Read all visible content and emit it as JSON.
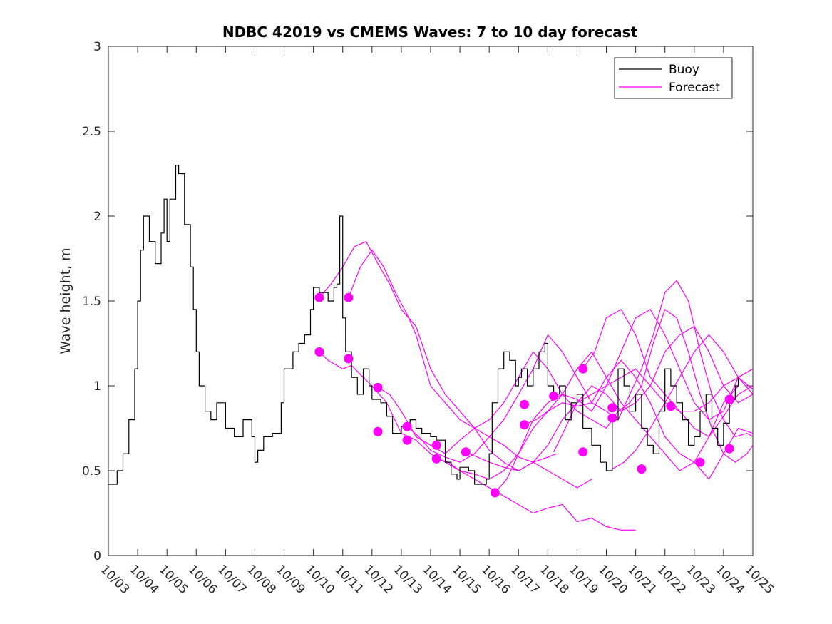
{
  "chart_data": {
    "type": "line",
    "title": "NDBC 42019 vs CMEMS Waves: 7 to 10 day forecast",
    "xlabel": "",
    "ylabel": "Wave height, m",
    "xlim": [
      0,
      22
    ],
    "ylim": [
      0,
      3
    ],
    "x_tick_labels": [
      "10/03",
      "10/04",
      "10/05",
      "10/06",
      "10/07",
      "10/08",
      "10/09",
      "10/10",
      "10/11",
      "10/12",
      "10/13",
      "10/14",
      "10/15",
      "10/16",
      "10/17",
      "10/18",
      "10/19",
      "10/20",
      "10/21",
      "10/22",
      "10/23",
      "10/24",
      "10/25"
    ],
    "y_ticks": [
      0,
      0.5,
      1,
      1.5,
      2,
      2.5,
      3
    ],
    "y_tick_labels": [
      "0",
      "0.5",
      "1",
      "1.5",
      "2",
      "2.5",
      "3"
    ],
    "x_units": "days since 10/03",
    "legend": {
      "position": "top-right",
      "entries": [
        {
          "label": "Buoy",
          "color": "#000000"
        },
        {
          "label": "Forecast",
          "color": "#ff00ff"
        }
      ]
    },
    "colors": {
      "buoy": "#000000",
      "forecast": "#ff00ff"
    },
    "buoy": {
      "name": "Buoy",
      "x": [
        0,
        0.3,
        0.5,
        0.7,
        0.9,
        1.0,
        1.1,
        1.2,
        1.4,
        1.6,
        1.8,
        1.9,
        2.0,
        2.1,
        2.3,
        2.4,
        2.6,
        2.8,
        2.9,
        3.0,
        3.1,
        3.3,
        3.5,
        3.7,
        4.0,
        4.3,
        4.6,
        4.9,
        5.0,
        5.1,
        5.3,
        5.6,
        5.9,
        6.0,
        6.3,
        6.5,
        6.7,
        6.9,
        7.0,
        7.2,
        7.5,
        7.7,
        7.8,
        7.9,
        8.0,
        8.1,
        8.3,
        8.5,
        8.7,
        8.9,
        9.0,
        9.3,
        9.5,
        9.7,
        10.0,
        10.3,
        10.5,
        10.7,
        11.0,
        11.2,
        11.5,
        11.7,
        11.9,
        12.0,
        12.3,
        12.5,
        12.7,
        12.9,
        13.0,
        13.1,
        13.3,
        13.5,
        13.7,
        13.9,
        14.0,
        14.1,
        14.3,
        14.5,
        14.7,
        14.9,
        15.0,
        15.2,
        15.4,
        15.6,
        15.8,
        16.0,
        16.2,
        16.5,
        16.8,
        17.0,
        17.2,
        17.4,
        17.6,
        17.8,
        18.0,
        18.2,
        18.4,
        18.6,
        18.8,
        19.0,
        19.2,
        19.4,
        19.6,
        19.8,
        20.0,
        20.2,
        20.4,
        20.6,
        20.8,
        21.0,
        21.2,
        21.4,
        21.5
      ],
      "y": [
        0.42,
        0.5,
        0.6,
        0.8,
        1.1,
        1.5,
        1.8,
        2.0,
        1.85,
        1.72,
        1.9,
        2.1,
        1.85,
        2.1,
        2.3,
        2.25,
        1.95,
        1.7,
        1.45,
        1.2,
        1.0,
        0.85,
        0.8,
        0.9,
        0.75,
        0.7,
        0.8,
        0.7,
        0.55,
        0.62,
        0.7,
        0.72,
        0.9,
        1.1,
        1.2,
        1.25,
        1.3,
        1.45,
        1.58,
        1.55,
        1.5,
        1.58,
        1.6,
        2.0,
        1.4,
        1.2,
        1.05,
        0.95,
        1.1,
        1.0,
        0.92,
        0.9,
        0.82,
        0.72,
        0.76,
        0.8,
        0.75,
        0.72,
        0.7,
        0.68,
        0.55,
        0.48,
        0.45,
        0.52,
        0.5,
        0.42,
        0.42,
        0.45,
        0.6,
        0.9,
        1.1,
        1.2,
        1.15,
        1.0,
        1.05,
        1.1,
        1.0,
        1.1,
        1.2,
        1.25,
        1.0,
        0.95,
        1.0,
        0.8,
        0.9,
        0.95,
        0.75,
        0.65,
        0.55,
        0.5,
        0.8,
        1.1,
        1.0,
        0.85,
        0.95,
        0.75,
        0.65,
        0.6,
        0.85,
        1.1,
        1.0,
        0.9,
        0.8,
        0.65,
        0.7,
        0.85,
        0.95,
        0.75,
        0.65,
        0.78,
        0.92,
        1.0,
        1.05
      ]
    },
    "forecast_series": [
      {
        "x": [
          7.2,
          7.5,
          8.0,
          8.3,
          8.7,
          9.0,
          9.5,
          10.0,
          10.5,
          11.0,
          11.5,
          12.0,
          12.5,
          13.0,
          13.5,
          14.0,
          14.5,
          15.0,
          15.5,
          16.0,
          16.5,
          17.0,
          17.5,
          18.0
        ],
        "y": [
          1.2,
          1.15,
          1.1,
          1.12,
          1.05,
          1.0,
          0.9,
          0.72,
          0.68,
          0.6,
          0.55,
          0.5,
          0.45,
          0.4,
          0.35,
          0.3,
          0.25,
          0.28,
          0.3,
          0.2,
          0.22,
          0.17,
          0.15,
          0.15
        ]
      },
      {
        "x": [
          7.2,
          7.6,
          8.0,
          8.4,
          8.8,
          9.2,
          9.6,
          10.0,
          10.5,
          11.0,
          11.5,
          12.0,
          12.5,
          13.0,
          13.5,
          14.0,
          14.5,
          15.0,
          15.3
        ],
        "y": [
          1.52,
          1.6,
          1.7,
          1.82,
          1.85,
          1.72,
          1.6,
          1.45,
          1.35,
          1.1,
          0.95,
          0.85,
          0.75,
          0.62,
          0.55,
          0.5,
          0.55,
          0.58,
          0.6
        ]
      },
      {
        "x": [
          8.2,
          8.6,
          9.0,
          9.4,
          9.8,
          10.2,
          10.5,
          11.0,
          11.5,
          12.0,
          12.5,
          13.0,
          13.5,
          14.0,
          14.5,
          15.0,
          15.5,
          16.0,
          16.5
        ],
        "y": [
          1.52,
          1.7,
          1.8,
          1.7,
          1.55,
          1.42,
          1.3,
          1.0,
          0.9,
          0.8,
          0.75,
          0.7,
          0.65,
          0.58,
          0.55,
          0.5,
          0.45,
          0.4,
          0.45
        ]
      },
      {
        "x": [
          9.2,
          9.6,
          10.0,
          10.5,
          11.0,
          11.5,
          12.0,
          12.5,
          13.0,
          13.5,
          14.0,
          14.5,
          15.0,
          15.5,
          16.0,
          16.5,
          17.0,
          17.4,
          17.8,
          18.2,
          18.6,
          19.0,
          19.4,
          19.8,
          20.2,
          20.6,
          21.0,
          21.4,
          21.8,
          22.0
        ],
        "y": [
          0.99,
          0.95,
          0.85,
          0.7,
          0.65,
          0.6,
          0.68,
          0.75,
          0.8,
          0.9,
          1.05,
          1.2,
          1.1,
          0.95,
          0.85,
          0.8,
          0.75,
          0.85,
          0.9,
          1.0,
          1.25,
          1.45,
          1.4,
          1.2,
          0.95,
          0.75,
          0.6,
          0.55,
          0.6,
          0.65
        ]
      },
      {
        "x": [
          10.2,
          10.6,
          11.0,
          11.5,
          12.0,
          12.5,
          13.0,
          13.5,
          14.0,
          14.5,
          15.0,
          15.5,
          16.0,
          16.5,
          17.0,
          17.4,
          17.8,
          18.2,
          18.6,
          19.0,
          19.4,
          19.8,
          20.2,
          20.6,
          21.0,
          21.4,
          21.8,
          22.0
        ],
        "y": [
          0.76,
          0.7,
          0.62,
          0.58,
          0.55,
          0.6,
          0.7,
          0.8,
          0.95,
          1.1,
          1.3,
          1.2,
          1.05,
          0.9,
          0.85,
          0.8,
          0.95,
          1.1,
          1.3,
          1.55,
          1.62,
          1.5,
          1.2,
          0.95,
          0.8,
          0.7,
          0.72,
          0.7
        ]
      },
      {
        "x": [
          11.2,
          11.6,
          12.0,
          12.5,
          13.0,
          13.5,
          14.0,
          14.5,
          15.0,
          15.5,
          16.0,
          16.5,
          17.0,
          17.5,
          18.0,
          18.5,
          19.0,
          19.5,
          20.0,
          20.5,
          21.0,
          21.5,
          22.0
        ],
        "y": [
          0.57,
          0.55,
          0.5,
          0.48,
          0.45,
          0.5,
          0.6,
          0.8,
          0.9,
          0.95,
          0.92,
          0.85,
          1.0,
          1.2,
          1.4,
          1.45,
          1.3,
          1.1,
          0.9,
          0.8,
          0.85,
          1.05,
          1.1
        ]
      },
      {
        "x": [
          12.2,
          12.6,
          13.0,
          13.5,
          14.0,
          14.5,
          15.0,
          15.5,
          16.0,
          16.5,
          17.0,
          17.5,
          18.0,
          18.5,
          19.0,
          19.5,
          20.0,
          20.5,
          21.0,
          21.5,
          22.0
        ],
        "y": [
          0.61,
          0.58,
          0.55,
          0.52,
          0.5,
          0.55,
          0.65,
          0.8,
          0.9,
          1.0,
          0.95,
          0.85,
          0.9,
          1.0,
          1.2,
          1.3,
          1.35,
          1.2,
          1.0,
          0.9,
          0.95
        ]
      },
      {
        "x": [
          13.2,
          13.6,
          14.0,
          14.5,
          15.0,
          15.5,
          16.0,
          16.5,
          17.0,
          17.5,
          18.0,
          18.5,
          19.0,
          19.5,
          20.0,
          20.5,
          21.0,
          21.5,
          22.0
        ],
        "y": [
          0.37,
          0.45,
          0.6,
          0.75,
          0.85,
          0.9,
          0.88,
          0.9,
          1.05,
          1.15,
          1.05,
          0.9,
          0.7,
          0.6,
          0.55,
          0.45,
          0.6,
          0.75,
          0.72
        ]
      },
      {
        "x": [
          14.2,
          14.6,
          15.0,
          15.5,
          16.0,
          16.5,
          17.0,
          17.5,
          18.0,
          18.5,
          19.0,
          19.5,
          20.0,
          20.5,
          21.0,
          21.5
        ],
        "y": [
          0.77,
          0.8,
          0.85,
          0.95,
          1.1,
          1.2,
          1.05,
          0.9,
          0.8,
          0.7,
          0.6,
          0.5,
          0.55,
          0.7,
          0.9,
          1.0
        ]
      },
      {
        "x": [
          15.2,
          15.6,
          16.0,
          16.5,
          17.0,
          17.5,
          18.0,
          18.5,
          19.0,
          19.5,
          20.0,
          20.5,
          21.0,
          21.5,
          22.0
        ],
        "y": [
          0.61,
          0.75,
          0.9,
          0.95,
          1.0,
          1.05,
          1.1,
          1.0,
          0.9,
          0.85,
          0.85,
          0.9,
          1.0,
          1.05,
          0.98
        ]
      },
      {
        "x": [
          16.2,
          16.6,
          17.0,
          17.5,
          18.0,
          18.5,
          19.0,
          19.5,
          20.0,
          20.5,
          21.0,
          21.5,
          22.0
        ],
        "y": [
          1.1,
          1.2,
          1.4,
          1.45,
          1.3,
          1.05,
          0.95,
          0.85,
          0.75,
          0.7,
          0.82,
          0.95,
          1.0
        ]
      },
      {
        "x": [
          17.2,
          17.6,
          18.0,
          18.5,
          19.0,
          19.5,
          20.0,
          20.5,
          21.0,
          21.5,
          22.0
        ],
        "y": [
          0.51,
          0.55,
          0.62,
          0.75,
          0.9,
          1.05,
          1.2,
          1.3,
          1.2,
          1.05,
          0.95
        ]
      }
    ],
    "forecast_markers": {
      "x": [
        7.2,
        7.2,
        8.2,
        8.2,
        9.2,
        9.2,
        10.2,
        10.2,
        11.2,
        11.2,
        12.2,
        13.2,
        14.2,
        14.2,
        15.2,
        16.2,
        16.2,
        17.2,
        17.2,
        18.2,
        19.2,
        20.2,
        21.2,
        21.2
      ],
      "y": [
        1.52,
        1.2,
        1.52,
        1.16,
        0.99,
        0.73,
        0.76,
        0.68,
        0.65,
        0.57,
        0.61,
        0.37,
        0.89,
        0.77,
        0.94,
        0.61,
        1.1,
        0.81,
        0.87,
        0.51,
        0.88,
        0.55,
        0.63,
        0.92
      ]
    }
  }
}
